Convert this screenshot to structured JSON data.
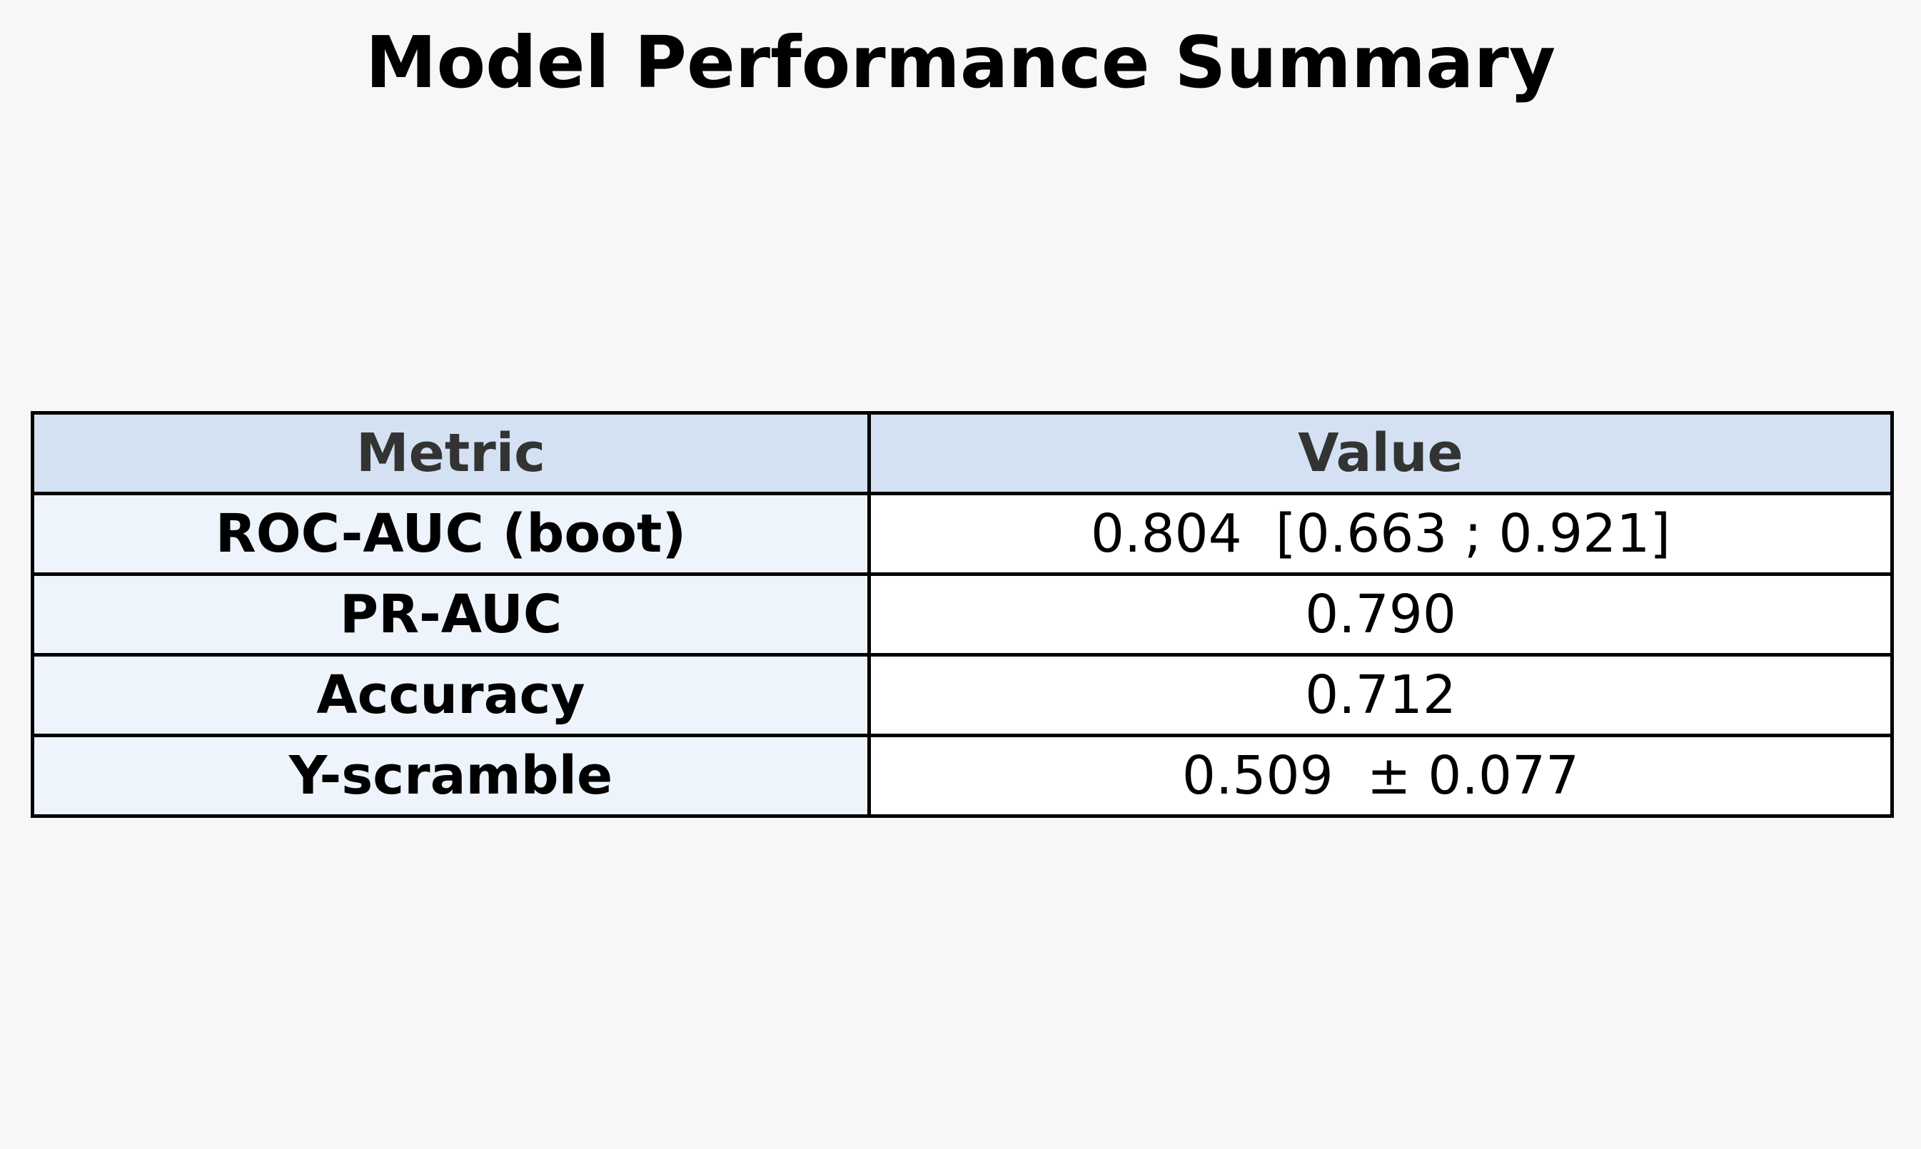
{
  "chart_data": {
    "type": "table",
    "title": "Model Performance Summary",
    "columns": [
      "Metric",
      "Value"
    ],
    "rows": [
      {
        "metric": "ROC-AUC (boot)",
        "value": "0.804  [0.663 ; 0.921]"
      },
      {
        "metric": "PR-AUC",
        "value": "0.790"
      },
      {
        "metric": "Accuracy",
        "value": "0.712"
      },
      {
        "metric": "Y-scramble",
        "value": "0.509  ± 0.077"
      }
    ],
    "colors": {
      "background": "#f7f7f7",
      "header_fill": "#d3e1f3",
      "header_text": "#333333",
      "metric_fill": "#eef4fc",
      "value_fill": "#ffffff",
      "border": "#000000"
    }
  }
}
